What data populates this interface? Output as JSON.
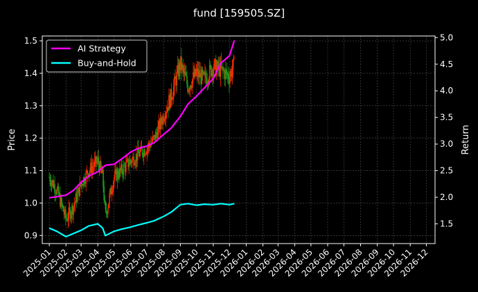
{
  "chart_data": {
    "type": "line",
    "title": "fund [159505.SZ]",
    "ylabel_left": "Price",
    "ylabel_right": "Return",
    "grid": true,
    "legend": {
      "placement": "top-left",
      "entries": [
        "AI Strategy",
        "Buy-and-Hold"
      ]
    },
    "colors": {
      "background": "#000000",
      "ai": "#ff00ff",
      "bh": "#00ffff",
      "up": "#ff2a00",
      "down": "#1a9e1a",
      "grid": "#555555"
    },
    "x_ticks": [
      "2025-01",
      "2025-02",
      "2025-03",
      "2025-04",
      "2025-05",
      "2025-06",
      "2025-07",
      "2025-08",
      "2025-09",
      "2025-10",
      "2025-11",
      "2025-12",
      "2026-01",
      "2026-02",
      "2026-03",
      "2026-04",
      "2026-05",
      "2026-06",
      "2026-07",
      "2026-08",
      "2026-09",
      "2026-10",
      "2026-11",
      "2026-12"
    ],
    "left_axis": {
      "ylim": [
        0.875,
        1.515
      ],
      "ticks": [
        "0.9",
        "1.0",
        "1.1",
        "1.2",
        "1.3",
        "1.4",
        "1.5"
      ]
    },
    "right_axis": {
      "ylim": [
        1.13,
        5.03
      ],
      "ticks": [
        "1.5",
        "2.0",
        "2.5",
        "3.0",
        "3.5",
        "4.0",
        "4.5",
        "5.0"
      ]
    },
    "series": [
      {
        "name": "AI Strategy",
        "axis": "right",
        "x": [
          "2025-01-01",
          "2025-01-15",
          "2025-02-01",
          "2025-02-15",
          "2025-03-01",
          "2025-03-15",
          "2025-04-01",
          "2025-04-15",
          "2025-05-01",
          "2025-05-15",
          "2025-06-01",
          "2025-06-15",
          "2025-07-01",
          "2025-07-15",
          "2025-08-01",
          "2025-08-15",
          "2025-09-01",
          "2025-09-15",
          "2025-10-01",
          "2025-10-15",
          "2025-11-01",
          "2025-11-15",
          "2025-12-01",
          "2025-12-10"
        ],
        "y": [
          1.99,
          2.01,
          2.04,
          2.13,
          2.28,
          2.4,
          2.48,
          2.6,
          2.62,
          2.72,
          2.85,
          2.92,
          2.96,
          3.03,
          3.18,
          3.3,
          3.52,
          3.75,
          3.9,
          4.05,
          4.23,
          4.52,
          4.66,
          4.95
        ]
      },
      {
        "name": "Buy-and-Hold",
        "axis": "right",
        "x": [
          "2025-01-01",
          "2025-01-15",
          "2025-02-01",
          "2025-02-15",
          "2025-03-01",
          "2025-03-15",
          "2025-04-01",
          "2025-04-10",
          "2025-04-15",
          "2025-05-01",
          "2025-05-15",
          "2025-06-01",
          "2025-06-15",
          "2025-07-01",
          "2025-07-15",
          "2025-08-01",
          "2025-08-15",
          "2025-09-01",
          "2025-09-15",
          "2025-10-01",
          "2025-10-15",
          "2025-11-01",
          "2025-11-15",
          "2025-12-01",
          "2025-12-10"
        ],
        "y": [
          1.42,
          1.36,
          1.26,
          1.32,
          1.38,
          1.46,
          1.5,
          1.42,
          1.28,
          1.36,
          1.4,
          1.44,
          1.48,
          1.52,
          1.56,
          1.64,
          1.72,
          1.86,
          1.88,
          1.85,
          1.87,
          1.86,
          1.88,
          1.86,
          1.88
        ]
      },
      {
        "name": "Price",
        "axis": "left",
        "type": "candlestick",
        "x": [
          "2025-01-01",
          "2025-01-15",
          "2025-02-01",
          "2025-02-15",
          "2025-03-01",
          "2025-03-15",
          "2025-04-01",
          "2025-04-10",
          "2025-04-15",
          "2025-05-01",
          "2025-05-15",
          "2025-06-01",
          "2025-06-15",
          "2025-07-01",
          "2025-07-15",
          "2025-08-01",
          "2025-08-15",
          "2025-09-01",
          "2025-09-15",
          "2025-10-01",
          "2025-10-15",
          "2025-11-01",
          "2025-11-15",
          "2025-12-01",
          "2025-12-10"
        ],
        "y": [
          1.08,
          1.04,
          0.95,
          0.99,
          1.06,
          1.1,
          1.13,
          1.08,
          0.96,
          1.08,
          1.1,
          1.13,
          1.15,
          1.17,
          1.2,
          1.27,
          1.33,
          1.43,
          1.36,
          1.4,
          1.38,
          1.42,
          1.41,
          1.39,
          1.43
        ]
      }
    ]
  }
}
